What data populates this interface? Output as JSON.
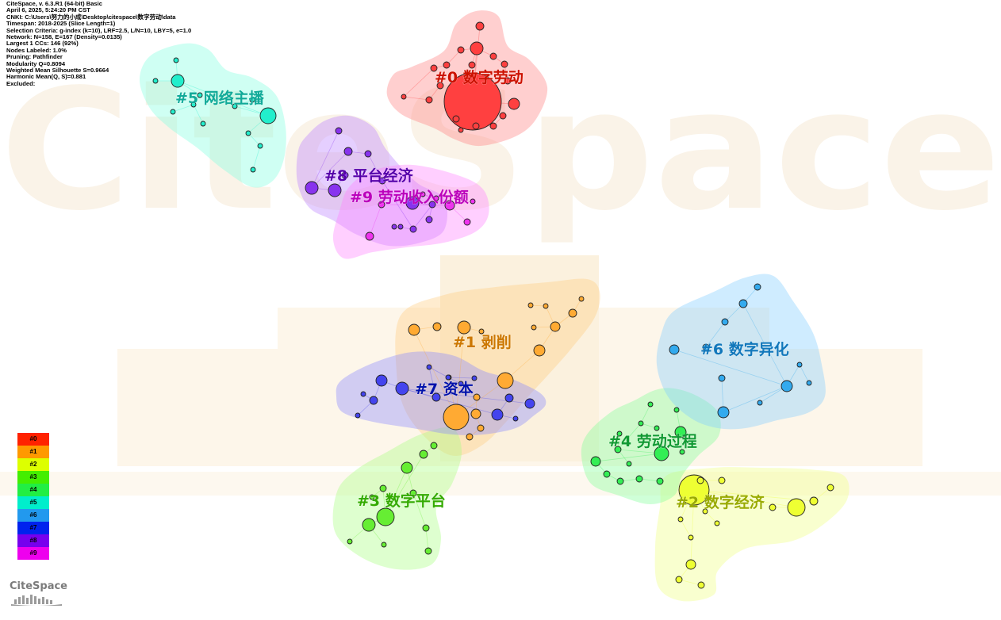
{
  "app": {
    "title": "CiteSpace, v. 6.3.R1 (64-bit) Basic",
    "info_lines": [
      "CiteSpace, v. 6.3.R1 (64-bit) Basic",
      "April 6, 2025, 5:24:20 PM CST",
      "CNKI: C:\\Users\\努力的小成\\Desktop\\citespace\\数字劳动\\data",
      "Timespan: 2018-2025 (Slice Length=1)",
      "Selection Criteria: g-index (k=10), LRF=2.5, L/N=10, LBY=5, e=1.0",
      "Network: N=158, E=167 (Density=0.0135)",
      "Largest 1 CCs: 146 (92%)",
      "Nodes Labeled: 1.0%",
      "Pruning: Pathfinder",
      "Modularity Q=0.8094",
      "Weighted Mean Silhouette S=0.9664",
      "Harmonic Mean(Q, S)=0.881",
      "Excluded:"
    ],
    "logo_text": "CiteSpace",
    "watermark_text": "CiteSpace"
  },
  "legend": [
    {
      "label": "#0",
      "color": "#ff2200"
    },
    {
      "label": "#1",
      "color": "#ff9900"
    },
    {
      "label": "#2",
      "color": "#ddff00"
    },
    {
      "label": "#3",
      "color": "#44ee00"
    },
    {
      "label": "#4",
      "color": "#22ee44"
    },
    {
      "label": "#5",
      "color": "#00eecc"
    },
    {
      "label": "#6",
      "color": "#2299ee"
    },
    {
      "label": "#7",
      "color": "#0022ee"
    },
    {
      "label": "#8",
      "color": "#7700ee"
    },
    {
      "label": "#9",
      "color": "#ee00ee"
    }
  ],
  "clusters": [
    {
      "id": "#0",
      "label": "#0 数字劳动",
      "fill": "#ff8080",
      "node": "#ff4040",
      "text": "#cc1100"
    },
    {
      "id": "#1",
      "label": "#1 剥削",
      "fill": "#ffcc80",
      "node": "#ffaa33",
      "text": "#cc7700"
    },
    {
      "id": "#2",
      "label": "#2 数字经济",
      "fill": "#eeff80",
      "node": "#eeff33",
      "text": "#99aa00"
    },
    {
      "id": "#3",
      "label": "#3 数字平台",
      "fill": "#a8ff80",
      "node": "#66ee33",
      "text": "#33aa00"
    },
    {
      "id": "#4",
      "label": "#4 劳动过程",
      "fill": "#80ff99",
      "node": "#33ee55",
      "text": "#119933"
    },
    {
      "id": "#5",
      "label": "#5 网络主播",
      "fill": "#80ffe0",
      "node": "#22eecc",
      "text": "#11aa99"
    },
    {
      "id": "#6",
      "label": "#6 数字异化",
      "fill": "#80ccff",
      "node": "#33aaee",
      "text": "#1177bb"
    },
    {
      "id": "#7",
      "label": "#7 资本",
      "fill": "#8888ff",
      "node": "#4444ee",
      "text": "#0011aa"
    },
    {
      "id": "#8",
      "label": "#8 平台经济",
      "fill": "#bb80ff",
      "node": "#8833ee",
      "text": "#5500aa"
    },
    {
      "id": "#9",
      "label": "#9 劳动收入份额",
      "fill": "#ff80ff",
      "node": "#ee33ee",
      "text": "#bb00bb"
    }
  ]
}
